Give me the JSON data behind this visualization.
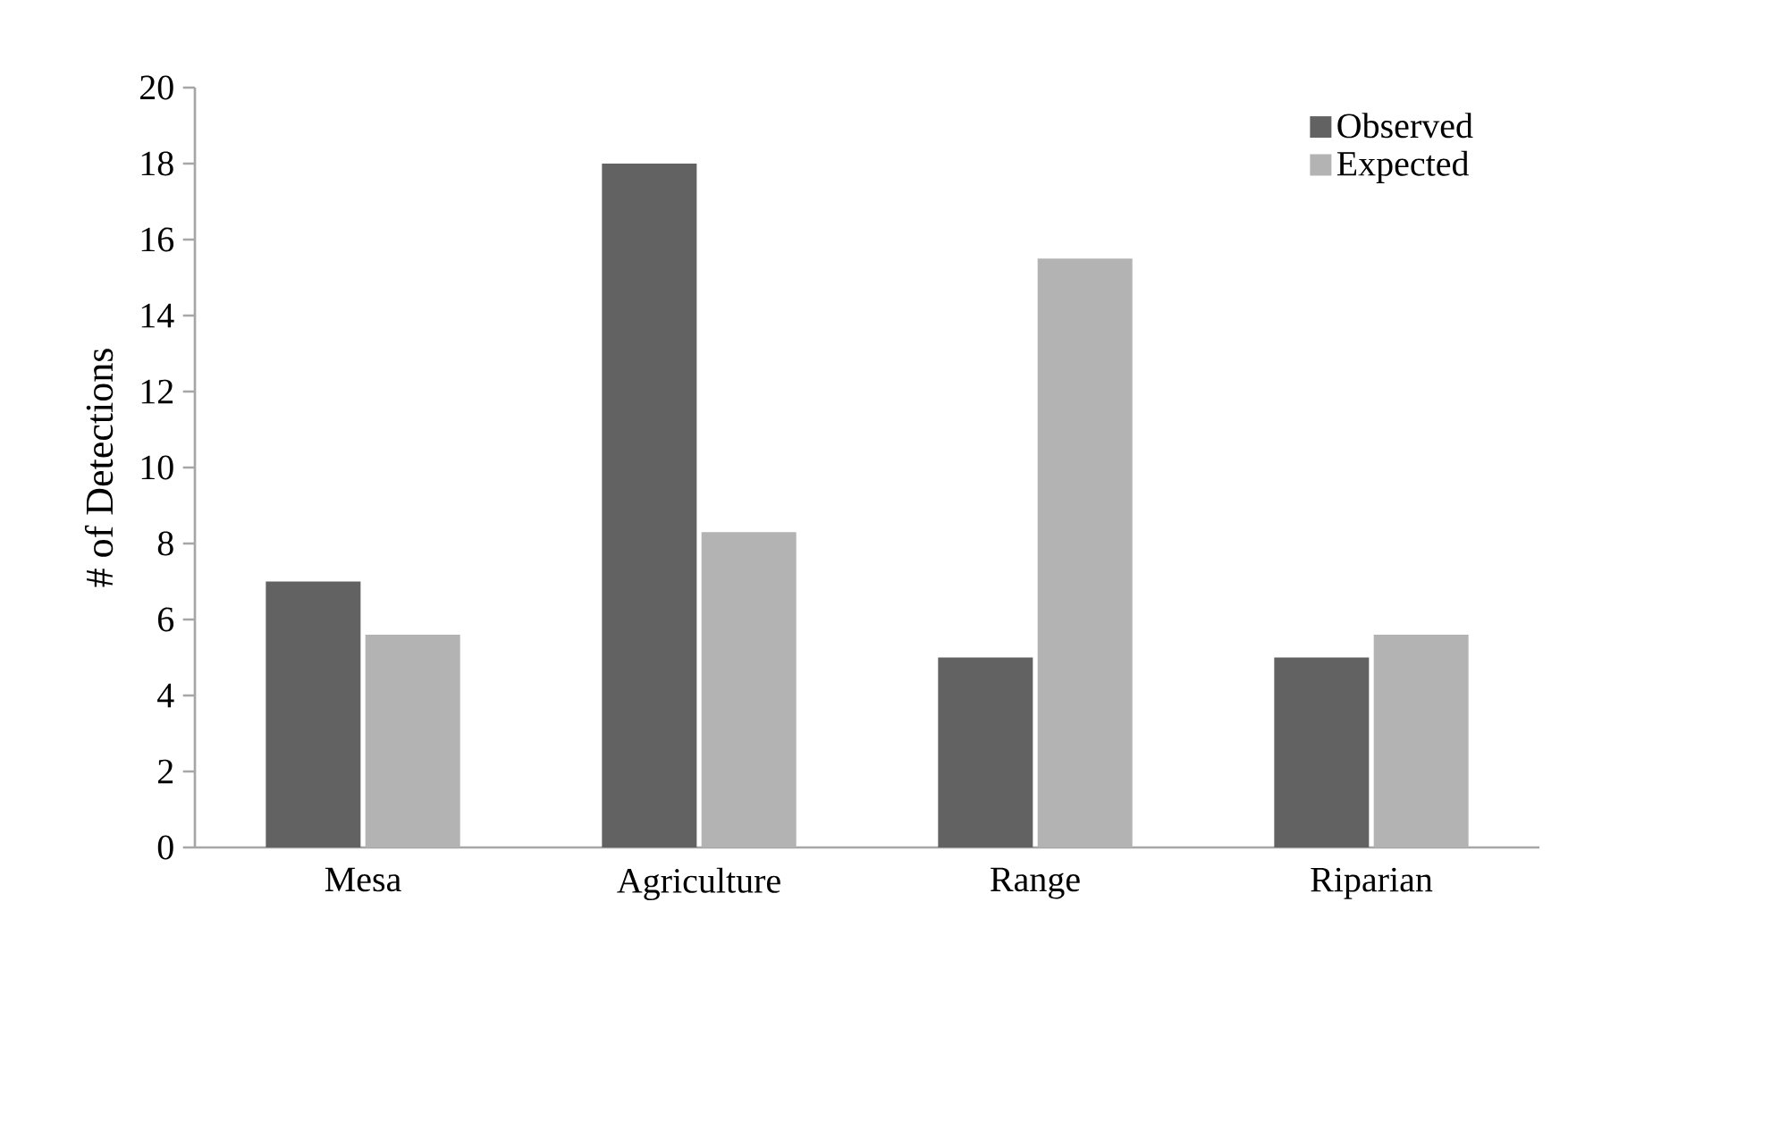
{
  "chart_data": {
    "type": "bar",
    "ylabel": "# of Detections",
    "categories": [
      "Mesa",
      "Agriculture",
      "Range",
      "Riparian"
    ],
    "series": [
      {
        "name": "Observed",
        "color": "#626262",
        "values": [
          7,
          18,
          5,
          5
        ]
      },
      {
        "name": "Expected",
        "color": "#b3b3b3",
        "values": [
          5.6,
          8.3,
          15.5,
          5.6
        ]
      }
    ],
    "ylim": [
      0,
      20
    ],
    "yticks": [
      0,
      2,
      4,
      6,
      8,
      10,
      12,
      14,
      16,
      18,
      20
    ],
    "legend": "top right",
    "grid": false
  }
}
